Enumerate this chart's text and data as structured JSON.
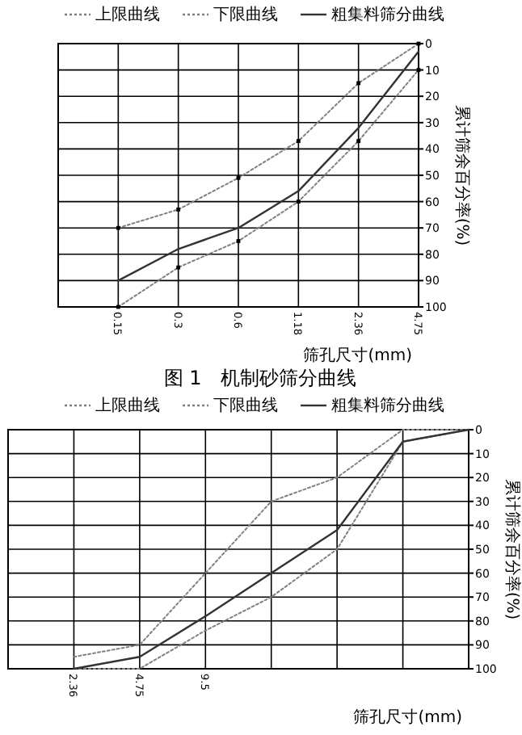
{
  "chart_data": [
    {
      "type": "line",
      "title": "图 1　机制砂筛分曲线",
      "xlabel": "筛孔尺寸(mm)",
      "ylabel": "累计筛余百分率(%)",
      "categories": [
        null,
        "0.15",
        "0.3",
        "0.6",
        "1.18",
        "2.36",
        "4.75"
      ],
      "ylim": [
        100,
        0
      ],
      "yticks": [
        0,
        10,
        20,
        30,
        40,
        50,
        60,
        70,
        80,
        90,
        100
      ],
      "grid": true,
      "legend": "top",
      "series": [
        {
          "name": "上限曲线",
          "color": "#808080",
          "line_style": "dotted",
          "marker": "square",
          "values": [
            null,
            70,
            63,
            51,
            37,
            15,
            0
          ]
        },
        {
          "name": "下限曲线",
          "color": "#808080",
          "line_style": "dotted",
          "marker": "square",
          "values": [
            null,
            100,
            85,
            75,
            60,
            37,
            10
          ]
        },
        {
          "name": "粗集料筛分曲线",
          "color": "#333333",
          "line_style": "solid",
          "values": [
            null,
            90,
            78,
            70,
            56,
            32,
            3
          ]
        }
      ]
    },
    {
      "type": "line",
      "xlabel": "筛孔尺寸(mm)",
      "ylabel": "累计筛余百分率(%)",
      "categories": [
        null,
        "2.36",
        "4.75",
        "9.5",
        null,
        null,
        null,
        null
      ],
      "ylim": [
        100,
        0
      ],
      "yticks": [
        0,
        10,
        20,
        30,
        40,
        50,
        60,
        70,
        80,
        90,
        100
      ],
      "grid": true,
      "legend": "top",
      "series": [
        {
          "name": "上限曲线",
          "color": "#808080",
          "line_style": "dotted",
          "values": [
            null,
            95,
            90,
            60,
            30,
            20,
            0,
            0
          ]
        },
        {
          "name": "下限曲线",
          "color": "#808080",
          "line_style": "dotted",
          "values": [
            null,
            100,
            100,
            84,
            70,
            50,
            5,
            0
          ]
        },
        {
          "name": "粗集料筛分曲线",
          "color": "#333333",
          "line_style": "solid",
          "values": [
            null,
            100,
            95,
            78,
            60,
            42,
            5,
            0
          ]
        }
      ]
    }
  ]
}
